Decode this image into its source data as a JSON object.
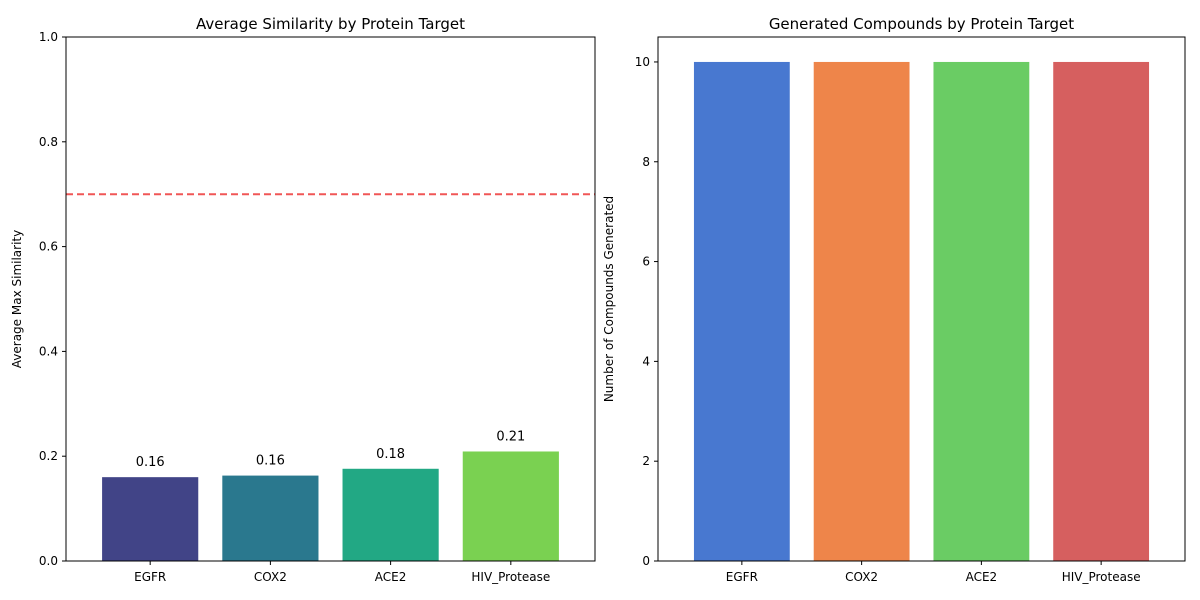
{
  "chart_data": [
    {
      "type": "bar",
      "title": "Average Similarity by Protein Target",
      "xlabel": "",
      "ylabel": "Average Max Similarity",
      "categories": [
        "EGFR",
        "COX2",
        "ACE2",
        "HIV_Protease"
      ],
      "values": [
        0.16,
        0.163,
        0.176,
        0.209
      ],
      "value_labels": [
        "0.16",
        "0.16",
        "0.18",
        "0.21"
      ],
      "colors": [
        "#414487",
        "#2a788e",
        "#22a884",
        "#7ad151"
      ],
      "ylim": [
        0,
        1.0
      ],
      "yticks": [
        0.0,
        0.2,
        0.4,
        0.6,
        0.8,
        1.0
      ],
      "ytick_labels": [
        "0.0",
        "0.2",
        "0.4",
        "0.6",
        "0.8",
        "1.0"
      ],
      "reference_line": {
        "y": 0.7,
        "color": "#ef4444",
        "style": "dashed"
      },
      "grid": false
    },
    {
      "type": "bar",
      "title": "Generated Compounds by Protein Target",
      "xlabel": "",
      "ylabel": "Number of Compounds Generated",
      "categories": [
        "EGFR",
        "COX2",
        "ACE2",
        "HIV_Protease"
      ],
      "values": [
        10,
        10,
        10,
        10
      ],
      "colors": [
        "#4878d0",
        "#ee854a",
        "#6acc64",
        "#d65f5f"
      ],
      "ylim": [
        0,
        10.5
      ],
      "yticks": [
        0,
        2,
        4,
        6,
        8,
        10
      ],
      "ytick_labels": [
        "0",
        "2",
        "4",
        "6",
        "8",
        "10"
      ],
      "grid": false
    }
  ]
}
